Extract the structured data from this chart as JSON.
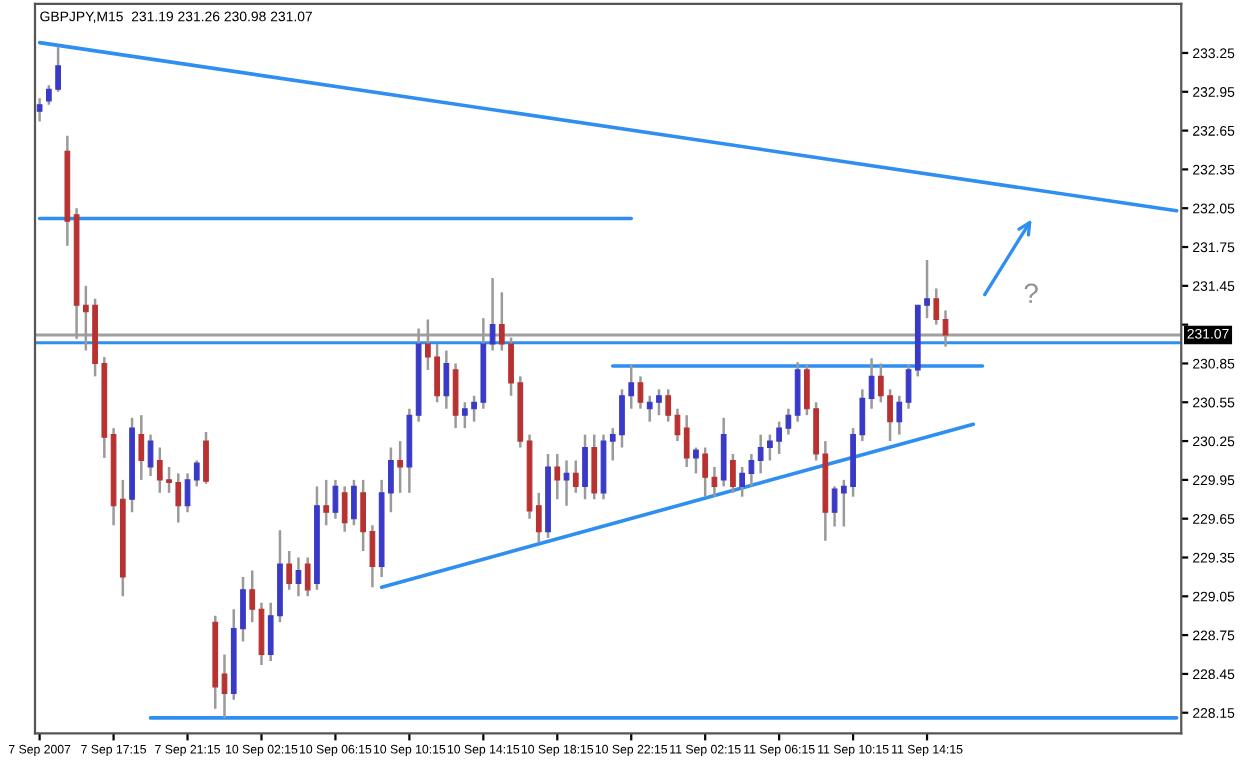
{
  "chart_data": {
    "type": "candlestick",
    "title": "GBPJPY,M15  231.19 231.26 230.98 231.07",
    "categories": [
      "7 Sep 2007",
      null,
      null,
      null,
      null,
      null,
      null,
      null,
      "7 Sep 17:15",
      null,
      null,
      null,
      null,
      null,
      null,
      null,
      "7 Sep 21:15",
      null,
      null,
      null,
      null,
      null,
      null,
      null,
      "10 Sep 02:15",
      null,
      null,
      null,
      null,
      null,
      null,
      null,
      "10 Sep 06:15",
      null,
      null,
      null,
      null,
      null,
      null,
      null,
      "10 Sep 10:15",
      null,
      null,
      null,
      null,
      null,
      null,
      null,
      "10 Sep 14:15",
      null,
      null,
      null,
      null,
      null,
      null,
      null,
      "10 Sep 18:15",
      null,
      null,
      null,
      null,
      null,
      null,
      null,
      "10 Sep 22:15",
      null,
      null,
      null,
      null,
      null,
      null,
      null,
      "11 Sep 02:15",
      null,
      null,
      null,
      null,
      null,
      null,
      null,
      "11 Sep 06:15",
      null,
      null,
      null,
      null,
      null,
      null,
      null,
      "11 Sep 10:15",
      null,
      null,
      null,
      null,
      null,
      null,
      null,
      "11 Sep 14:15",
      null,
      null,
      null,
      null,
      null,
      null,
      null,
      null,
      null,
      null,
      null,
      null,
      null,
      null,
      null,
      null,
      null,
      null,
      null,
      null,
      null,
      null,
      null,
      null,
      null,
      null,
      null
    ],
    "ohlc": [
      [
        232.8,
        232.9,
        232.72,
        232.85
      ],
      [
        232.88,
        233.0,
        232.85,
        232.97
      ],
      [
        232.97,
        233.3,
        232.95,
        233.15
      ],
      [
        232.49,
        232.61,
        231.76,
        231.95
      ],
      [
        232.0,
        232.05,
        231.04,
        231.3
      ],
      [
        231.3,
        231.45,
        230.95,
        231.25
      ],
      [
        231.3,
        231.35,
        230.75,
        230.85
      ],
      [
        230.85,
        230.9,
        230.12,
        230.28
      ],
      [
        230.3,
        230.35,
        229.6,
        229.75
      ],
      [
        229.8,
        229.95,
        229.05,
        229.2
      ],
      [
        229.8,
        230.43,
        229.7,
        230.35
      ],
      [
        230.3,
        230.45,
        229.95,
        230.1
      ],
      [
        230.05,
        230.3,
        229.98,
        230.25
      ],
      [
        230.1,
        230.2,
        229.85,
        229.95
      ],
      [
        229.95,
        230.05,
        229.85,
        229.93
      ],
      [
        229.93,
        230.0,
        229.62,
        229.75
      ],
      [
        229.75,
        230.0,
        229.7,
        229.95
      ],
      [
        229.95,
        230.1,
        229.9,
        230.08
      ],
      [
        230.25,
        230.32,
        229.92,
        229.94
      ],
      [
        228.85,
        228.9,
        228.18,
        228.35
      ],
      [
        228.45,
        228.6,
        228.11,
        228.3
      ],
      [
        228.3,
        228.95,
        228.25,
        228.8
      ],
      [
        228.8,
        229.2,
        228.7,
        229.1
      ],
      [
        229.1,
        229.25,
        228.85,
        228.95
      ],
      [
        228.95,
        229.0,
        228.52,
        228.6
      ],
      [
        228.6,
        229.0,
        228.55,
        228.9
      ],
      [
        228.9,
        229.56,
        228.85,
        229.3
      ],
      [
        229.3,
        229.4,
        229.1,
        229.15
      ],
      [
        229.15,
        229.35,
        229.05,
        229.25
      ],
      [
        229.3,
        229.35,
        229.05,
        229.1
      ],
      [
        229.15,
        229.9,
        229.1,
        229.75
      ],
      [
        229.75,
        229.95,
        229.6,
        229.7
      ],
      [
        229.7,
        229.95,
        229.65,
        229.9
      ],
      [
        229.85,
        229.9,
        229.55,
        229.62
      ],
      [
        229.65,
        229.95,
        229.6,
        229.9
      ],
      [
        229.85,
        229.95,
        229.4,
        229.55
      ],
      [
        229.55,
        229.6,
        229.12,
        229.28
      ],
      [
        229.28,
        229.95,
        229.2,
        229.85
      ],
      [
        229.85,
        230.2,
        229.7,
        230.1
      ],
      [
        230.1,
        230.25,
        229.85,
        230.05
      ],
      [
        230.05,
        230.5,
        229.85,
        230.45
      ],
      [
        230.45,
        231.12,
        230.4,
        231.0
      ],
      [
        231.0,
        231.19,
        230.8,
        230.9
      ],
      [
        230.9,
        231.0,
        230.55,
        230.6
      ],
      [
        230.6,
        230.95,
        230.5,
        230.85
      ],
      [
        230.8,
        230.85,
        230.35,
        230.45
      ],
      [
        230.45,
        230.55,
        230.35,
        230.5
      ],
      [
        230.5,
        230.6,
        230.4,
        230.55
      ],
      [
        230.55,
        231.2,
        230.5,
        231.0
      ],
      [
        231.0,
        231.51,
        230.95,
        231.15
      ],
      [
        231.15,
        231.4,
        230.95,
        231.0
      ],
      [
        231.0,
        231.05,
        230.6,
        230.7
      ],
      [
        230.7,
        230.75,
        230.2,
        230.25
      ],
      [
        230.25,
        230.3,
        229.65,
        229.71
      ],
      [
        229.75,
        229.85,
        229.47,
        229.55
      ],
      [
        229.55,
        230.15,
        229.5,
        230.05
      ],
      [
        230.05,
        230.15,
        229.8,
        229.95
      ],
      [
        229.95,
        230.1,
        229.75,
        230.0
      ],
      [
        230.0,
        230.1,
        229.85,
        229.9
      ],
      [
        229.9,
        230.3,
        229.8,
        230.2
      ],
      [
        230.2,
        230.3,
        229.8,
        229.85
      ],
      [
        229.85,
        230.3,
        229.8,
        230.25
      ],
      [
        230.25,
        230.35,
        230.1,
        230.3
      ],
      [
        230.3,
        230.65,
        230.2,
        230.6
      ],
      [
        230.6,
        230.84,
        230.5,
        230.7
      ],
      [
        230.7,
        230.75,
        230.5,
        230.55
      ],
      [
        230.5,
        230.6,
        230.4,
        230.55
      ],
      [
        230.55,
        230.65,
        230.45,
        230.6
      ],
      [
        230.6,
        230.65,
        230.4,
        230.45
      ],
      [
        230.45,
        230.5,
        230.25,
        230.3
      ],
      [
        230.35,
        230.45,
        230.05,
        230.12
      ],
      [
        230.12,
        230.2,
        230.0,
        230.18
      ],
      [
        230.15,
        230.2,
        229.82,
        229.97
      ],
      [
        229.97,
        230.05,
        229.82,
        229.9
      ],
      [
        229.95,
        230.43,
        229.9,
        230.3
      ],
      [
        230.1,
        230.15,
        229.85,
        229.9
      ],
      [
        229.9,
        230.05,
        229.82,
        230.0
      ],
      [
        230.0,
        230.15,
        229.9,
        230.1
      ],
      [
        230.1,
        230.3,
        230.0,
        230.2
      ],
      [
        230.2,
        230.3,
        230.1,
        230.25
      ],
      [
        230.25,
        230.4,
        230.15,
        230.35
      ],
      [
        230.35,
        230.5,
        230.3,
        230.45
      ],
      [
        230.45,
        230.86,
        230.4,
        230.8
      ],
      [
        230.8,
        230.84,
        230.45,
        230.5
      ],
      [
        230.5,
        230.55,
        230.1,
        230.15
      ],
      [
        230.15,
        230.25,
        229.48,
        229.7
      ],
      [
        229.7,
        229.9,
        229.59,
        229.88
      ],
      [
        229.85,
        229.95,
        229.59,
        229.9
      ],
      [
        229.9,
        230.35,
        229.82,
        230.3
      ],
      [
        230.3,
        230.65,
        230.25,
        230.58
      ],
      [
        230.58,
        230.89,
        230.5,
        230.75
      ],
      [
        230.75,
        230.85,
        230.55,
        230.6
      ],
      [
        230.6,
        230.65,
        230.25,
        230.4
      ],
      [
        230.4,
        230.6,
        230.3,
        230.55
      ],
      [
        230.55,
        230.84,
        230.5,
        230.8
      ],
      [
        230.8,
        231.3,
        230.75,
        231.3
      ],
      [
        231.3,
        231.65,
        231.2,
        231.35
      ],
      [
        231.35,
        231.43,
        231.15,
        231.19
      ],
      [
        231.19,
        231.26,
        230.98,
        231.07
      ],
      null,
      null,
      null,
      null,
      null,
      null,
      null,
      null,
      null,
      null,
      null,
      null,
      null,
      null,
      null,
      null,
      null,
      null,
      null,
      null,
      null,
      null,
      null,
      null,
      null
    ],
    "colors": [
      "#3a3ac8",
      "#3a3ac8",
      "#3a3ac8",
      "#b83232",
      "#b83232",
      "#b83232",
      "#b83232",
      "#b83232",
      "#b83232",
      "#b83232",
      "#3a3ac8",
      "#b83232",
      "#3a3ac8",
      "#b83232",
      "#b83232",
      "#b83232",
      "#3a3ac8",
      "#3a3ac8",
      "#b83232",
      "#b83232",
      "#b83232",
      "#3a3ac8",
      "#3a3ac8",
      "#b83232",
      "#b83232",
      "#3a3ac8",
      "#3a3ac8",
      "#b83232",
      "#3a3ac8",
      "#b83232",
      "#3a3ac8",
      "#b83232",
      "#3a3ac8",
      "#b83232",
      "#3a3ac8",
      "#b83232",
      "#b83232",
      "#3a3ac8",
      "#3a3ac8",
      "#b83232",
      "#3a3ac8",
      "#3a3ac8",
      "#b83232",
      "#b83232",
      "#3a3ac8",
      "#b83232",
      "#3a3ac8",
      "#3a3ac8",
      "#3a3ac8",
      "#3a3ac8",
      "#b83232",
      "#b83232",
      "#b83232",
      "#b83232",
      "#b83232",
      "#3a3ac8",
      "#b83232",
      "#3a3ac8",
      "#b83232",
      "#3a3ac8",
      "#b83232",
      "#3a3ac8",
      "#3a3ac8",
      "#3a3ac8",
      "#3a3ac8",
      "#b83232",
      "#3a3ac8",
      "#3a3ac8",
      "#b83232",
      "#b83232",
      "#b83232",
      "#3a3ac8",
      "#b83232",
      "#b83232",
      "#3a3ac8",
      "#b83232",
      "#3a3ac8",
      "#3a3ac8",
      "#3a3ac8",
      "#3a3ac8",
      "#3a3ac8",
      "#3a3ac8",
      "#3a3ac8",
      "#b83232",
      "#b83232",
      "#b83232",
      "#3a3ac8",
      "#3a3ac8",
      "#3a3ac8",
      "#3a3ac8",
      "#3a3ac8",
      "#b83232",
      "#b83232",
      "#3a3ac8",
      "#3a3ac8",
      "#3a3ac8",
      "#3a3ac8",
      "#b83232",
      "#b83232",
      null,
      null,
      null,
      null,
      null,
      null,
      null,
      null,
      null,
      null,
      null,
      null,
      null,
      null,
      null,
      null,
      null,
      null,
      null,
      null,
      null,
      null,
      null,
      null,
      null
    ],
    "series": [
      {
        "type": "line",
        "color": "#2f8ff0",
        "values": [
          233.33,
          null,
          null,
          null,
          null,
          null,
          null,
          null,
          null,
          null,
          null,
          null,
          null,
          null,
          null,
          null,
          null,
          null,
          null,
          null,
          null,
          null,
          null,
          null,
          null,
          null,
          null,
          null,
          null,
          null,
          null,
          null,
          null,
          null,
          null,
          null,
          null,
          null,
          null,
          null,
          null,
          null,
          null,
          null,
          null,
          null,
          null,
          null,
          null,
          null,
          null,
          null,
          null,
          null,
          null,
          null,
          null,
          null,
          null,
          null,
          null,
          null,
          null,
          null,
          null,
          null,
          null,
          null,
          null,
          null,
          null,
          null,
          null,
          null,
          null,
          null,
          null,
          null,
          null,
          null,
          null,
          null,
          null,
          null,
          null,
          null,
          null,
          null,
          null,
          null,
          null,
          null,
          null,
          null,
          null,
          null,
          null,
          null,
          null,
          null,
          null,
          null,
          null,
          null,
          null,
          null,
          null,
          null,
          null,
          null,
          null,
          null,
          null,
          null,
          null,
          null,
          null,
          null,
          null,
          null,
          null,
          null,
          null,
          232.03
        ]
      },
      {
        "type": "line",
        "color": "#2f8ff0",
        "values": [
          231.97,
          null,
          null,
          null,
          null,
          null,
          null,
          null,
          null,
          null,
          null,
          null,
          null,
          null,
          null,
          null,
          null,
          null,
          null,
          null,
          null,
          null,
          null,
          null,
          null,
          null,
          null,
          null,
          null,
          null,
          null,
          null,
          null,
          null,
          null,
          null,
          null,
          null,
          null,
          null,
          null,
          null,
          null,
          null,
          null,
          null,
          null,
          null,
          null,
          null,
          null,
          null,
          null,
          null,
          null,
          null,
          null,
          null,
          null,
          null,
          null,
          null,
          null,
          null,
          231.97,
          null,
          null,
          null,
          null,
          null,
          null,
          null,
          null,
          null,
          null,
          null,
          null,
          null,
          null,
          null,
          null,
          null,
          null,
          null,
          null,
          null,
          null,
          null,
          null,
          null,
          null,
          null,
          null,
          null,
          null,
          null,
          null,
          null,
          null,
          null,
          null,
          null,
          null,
          null,
          null,
          null,
          null,
          null,
          null,
          null,
          null,
          null,
          null,
          null,
          null,
          null,
          null,
          null,
          null,
          null,
          null,
          null,
          null,
          null
        ]
      },
      {
        "type": "line",
        "color": "#2f8ff0",
        "values": [
          null,
          null,
          null,
          null,
          null,
          null,
          null,
          null,
          null,
          null,
          null,
          null,
          null,
          null,
          null,
          null,
          null,
          null,
          null,
          null,
          null,
          null,
          null,
          null,
          null,
          null,
          null,
          null,
          null,
          null,
          null,
          null,
          null,
          null,
          null,
          null,
          null,
          null,
          null,
          null,
          null,
          null,
          null,
          null,
          null,
          null,
          null,
          null,
          null,
          null,
          null,
          null,
          null,
          null,
          null,
          null,
          null,
          null,
          null,
          null,
          null,
          null,
          230.83,
          null,
          null,
          null,
          null,
          null,
          null,
          null,
          null,
          null,
          null,
          null,
          null,
          null,
          null,
          null,
          null,
          null,
          null,
          null,
          null,
          null,
          null,
          null,
          null,
          null,
          null,
          null,
          null,
          null,
          null,
          null,
          null,
          null,
          null,
          null,
          null,
          null,
          null,
          null,
          230.83,
          null,
          null,
          null,
          null,
          null,
          null,
          null,
          null,
          null,
          null,
          null,
          null,
          null,
          null,
          null,
          null,
          null,
          null,
          null,
          null,
          null
        ]
      },
      {
        "type": "line",
        "color": "#2f8ff0",
        "values": [
          null,
          null,
          null,
          null,
          null,
          null,
          null,
          null,
          null,
          null,
          null,
          null,
          null,
          null,
          null,
          null,
          null,
          null,
          null,
          null,
          null,
          null,
          null,
          null,
          null,
          null,
          null,
          null,
          null,
          null,
          null,
          null,
          null,
          null,
          null,
          null,
          null,
          229.12,
          null,
          null,
          null,
          null,
          null,
          null,
          null,
          null,
          null,
          null,
          null,
          null,
          null,
          null,
          null,
          null,
          null,
          null,
          null,
          null,
          null,
          null,
          null,
          null,
          null,
          null,
          null,
          null,
          null,
          null,
          null,
          null,
          null,
          null,
          null,
          null,
          null,
          null,
          null,
          null,
          null,
          null,
          null,
          null,
          null,
          null,
          null,
          null,
          null,
          null,
          null,
          null,
          null,
          null,
          null,
          null,
          null,
          null,
          null,
          null,
          null,
          null,
          null,
          230.38,
          null,
          null,
          null,
          null,
          null,
          null,
          null,
          null,
          null,
          null,
          null,
          null,
          null,
          null,
          null,
          null,
          null,
          null,
          null,
          null,
          null,
          null
        ]
      },
      {
        "type": "line",
        "color": "#2f8ff0",
        "values": [
          null,
          null,
          null,
          null,
          null,
          null,
          null,
          null,
          null,
          null,
          null,
          null,
          228.11,
          null,
          null,
          null,
          null,
          null,
          null,
          null,
          null,
          null,
          null,
          null,
          null,
          null,
          null,
          null,
          null,
          null,
          null,
          null,
          null,
          null,
          null,
          null,
          null,
          null,
          null,
          null,
          null,
          null,
          null,
          null,
          null,
          null,
          null,
          null,
          null,
          null,
          null,
          null,
          null,
          null,
          null,
          null,
          null,
          null,
          null,
          null,
          null,
          null,
          null,
          null,
          null,
          null,
          null,
          null,
          null,
          null,
          null,
          null,
          null,
          null,
          null,
          null,
          null,
          null,
          null,
          null,
          null,
          null,
          null,
          null,
          null,
          null,
          null,
          null,
          null,
          null,
          null,
          null,
          null,
          null,
          null,
          null,
          null,
          null,
          null,
          null,
          null,
          null,
          null,
          null,
          null,
          null,
          null,
          null,
          null,
          null,
          null,
          null,
          null,
          null,
          null,
          null,
          null,
          null,
          null,
          null,
          null,
          null,
          null,
          228.11
        ]
      }
    ],
    "ref_lines": [
      {
        "axis": "y",
        "value": 231.07,
        "label": "231.07",
        "color": "#a0a0a0"
      },
      {
        "axis": "y",
        "value": 231.01,
        "color": "#2f8ff0"
      }
    ],
    "annotations": [
      "?"
    ],
    "ylim": [
      227.99,
      233.63
    ],
    "yticks": [
      228.15,
      228.45,
      228.75,
      229.05,
      229.35,
      229.65,
      229.95,
      230.25,
      230.55,
      230.85,
      {
        "value": 231.15,
        "label": null
      },
      231.45,
      231.75,
      232.05,
      232.35,
      232.65,
      232.95,
      233.25
    ],
    "grid": false,
    "legend": false
  }
}
